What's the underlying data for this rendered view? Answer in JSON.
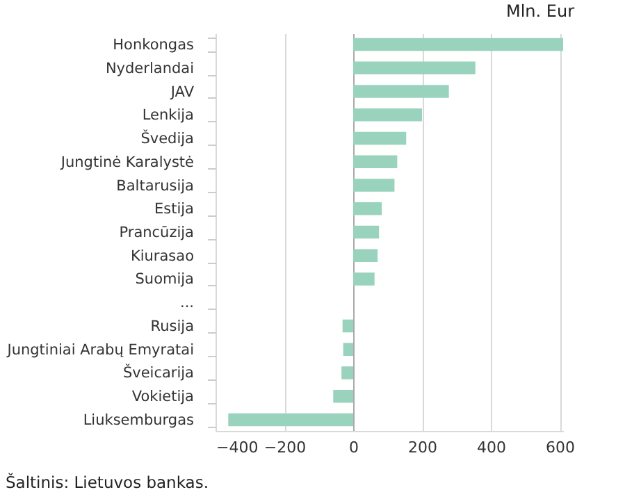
{
  "chart_data": {
    "type": "bar",
    "orientation": "horizontal",
    "title": "Mln. Eur",
    "categories": [
      "Honkongas",
      "Nyderlandai",
      "JAV",
      "Lenkija",
      "Švedija",
      "Jungtinė Karalystė",
      "Baltarusija",
      "Estija",
      "Prancūzija",
      "Kiurasao",
      "Suomija",
      "...",
      "Rusija",
      "Jungtiniai Arabų Emyratai",
      "Šveicarija",
      "Vokietija",
      "Liuksemburgas"
    ],
    "values": [
      610,
      355,
      278,
      200,
      154,
      128,
      120,
      83,
      75,
      71,
      62,
      null,
      -31,
      -29,
      -34,
      -58,
      -363
    ],
    "color": "#99d3bd",
    "xlim": [
      -400,
      610
    ],
    "xticks": [
      -400,
      -200,
      0,
      200,
      400,
      600
    ],
    "grid": "x",
    "annotations": [
      "Šaltinis: Lietuvos bankas."
    ]
  }
}
